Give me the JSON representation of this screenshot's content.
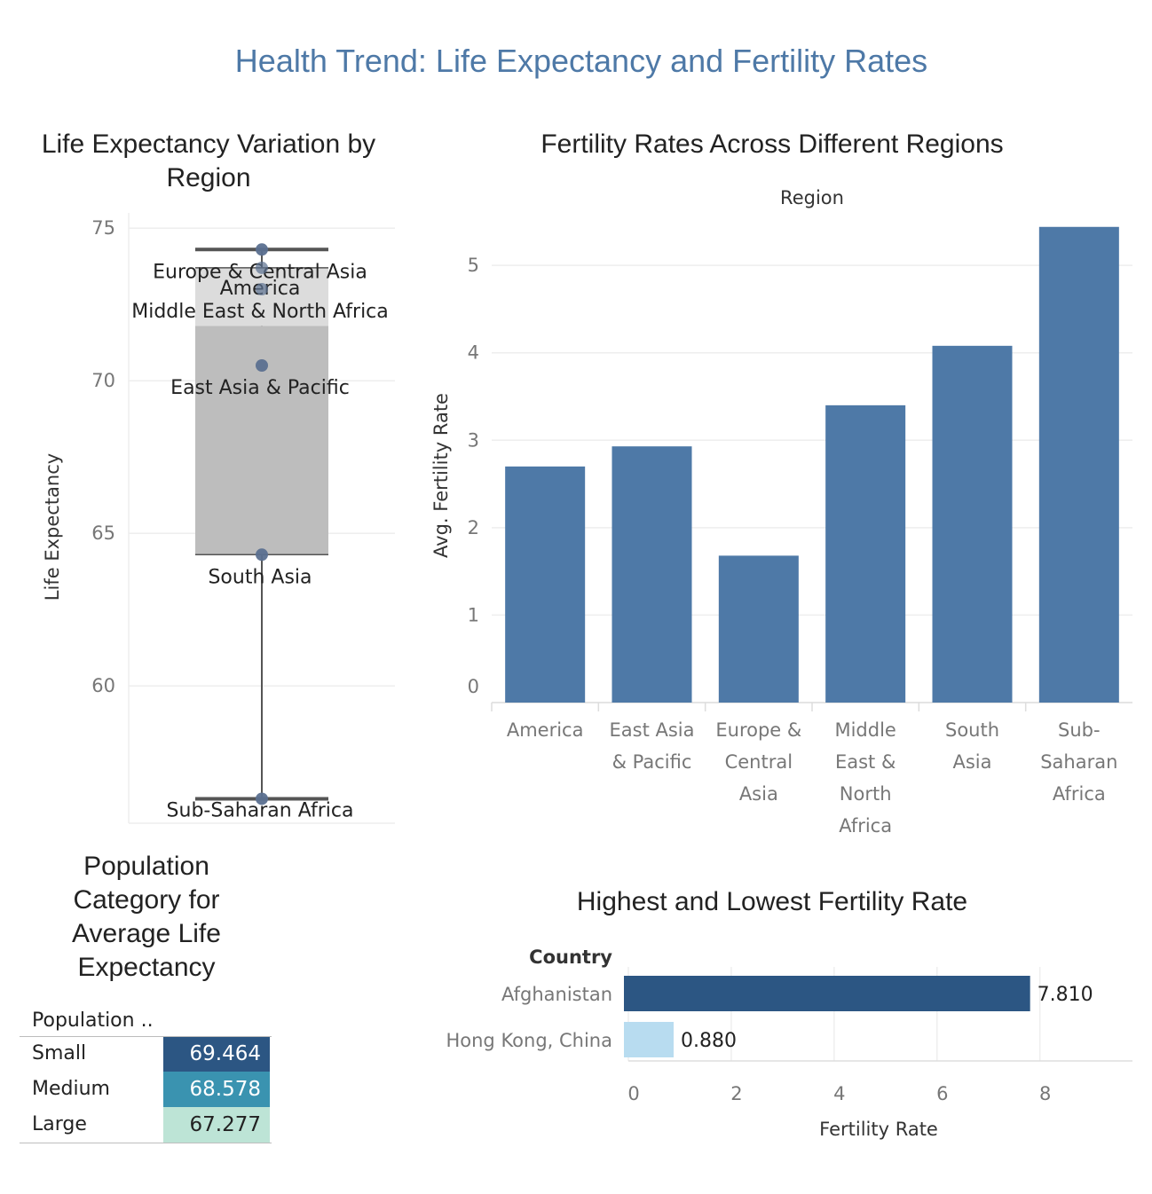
{
  "dashboard_title": "Health Trend: Life Expectancy and Fertility Rates",
  "colors": {
    "title": "#4e79a7",
    "bar": "#4e79a7",
    "box_fill": "#bdbdbd",
    "box_line": "#555555",
    "dot": "#5b7090",
    "hbar_high": "#2c5683",
    "hbar_low": "#b8dcf0",
    "pop_small": "#2c5683",
    "pop_medium": "#3a93b0",
    "pop_large": "#bde4d6"
  },
  "chart_data": [
    {
      "id": "life-expectancy-box",
      "type": "box",
      "title": "Life Expectancy Variation by Region",
      "ylabel": "Life Expectancy",
      "ylim": [
        55.5,
        75.5
      ],
      "yticks": [
        60,
        65,
        70,
        75
      ],
      "box": {
        "min": 56.3,
        "q1": 64.3,
        "median": 71.8,
        "q3": 73.7,
        "max": 74.3
      },
      "points": [
        {
          "label": "Europe & Central Asia",
          "value": 74.3
        },
        {
          "label": "America",
          "value": 73.7
        },
        {
          "label": "Middle East & North Africa",
          "value": 73.0
        },
        {
          "label": "East Asia & Pacific",
          "value": 70.5
        },
        {
          "label": "South Asia",
          "value": 64.3
        },
        {
          "label": "Sub-Saharan Africa",
          "value": 56.3
        }
      ]
    },
    {
      "id": "fertility-regions-bar",
      "type": "bar",
      "title": "Fertility Rates Across Different Regions",
      "xlabel": "Region",
      "ylabel": "Avg. Fertility Rate",
      "ylim": [
        0,
        5.6
      ],
      "yticks": [
        0,
        1,
        2,
        3,
        4,
        5
      ],
      "categories": [
        "America",
        "East Asia & Pacific",
        "Europe & Central Asia",
        "Middle East & North Africa",
        "South Asia",
        "Sub-Saharan Africa"
      ],
      "category_lines": [
        [
          "America"
        ],
        [
          "East Asia",
          "& Pacific"
        ],
        [
          "Europe &",
          "Central",
          "Asia"
        ],
        [
          "Middle",
          "East &",
          "North",
          "Africa"
        ],
        [
          "South",
          "Asia"
        ],
        [
          "Sub-",
          "Saharan",
          "Africa"
        ]
      ],
      "values": [
        2.7,
        2.93,
        1.68,
        3.4,
        4.08,
        5.44
      ]
    },
    {
      "id": "fertility-extremes-hbar",
      "type": "bar",
      "orientation": "horizontal",
      "title": "Highest and Lowest Fertility Rate",
      "ylabel": "Country",
      "xlabel": "Fertility Rate",
      "xlim": [
        0,
        9.8
      ],
      "xticks": [
        0,
        2,
        4,
        6,
        8
      ],
      "categories": [
        "Afghanistan",
        "Hong Kong, China"
      ],
      "values": [
        7.81,
        0.88
      ],
      "value_labels": [
        "7.810",
        "0.880"
      ]
    },
    {
      "id": "population-table",
      "type": "table",
      "title": "Population Category for Average Life Expectancy",
      "column_header": "Population ..",
      "rows": [
        {
          "label": "Small",
          "value": "69.464"
        },
        {
          "label": "Medium",
          "value": "68.578"
        },
        {
          "label": "Large",
          "value": "67.277"
        }
      ]
    }
  ]
}
